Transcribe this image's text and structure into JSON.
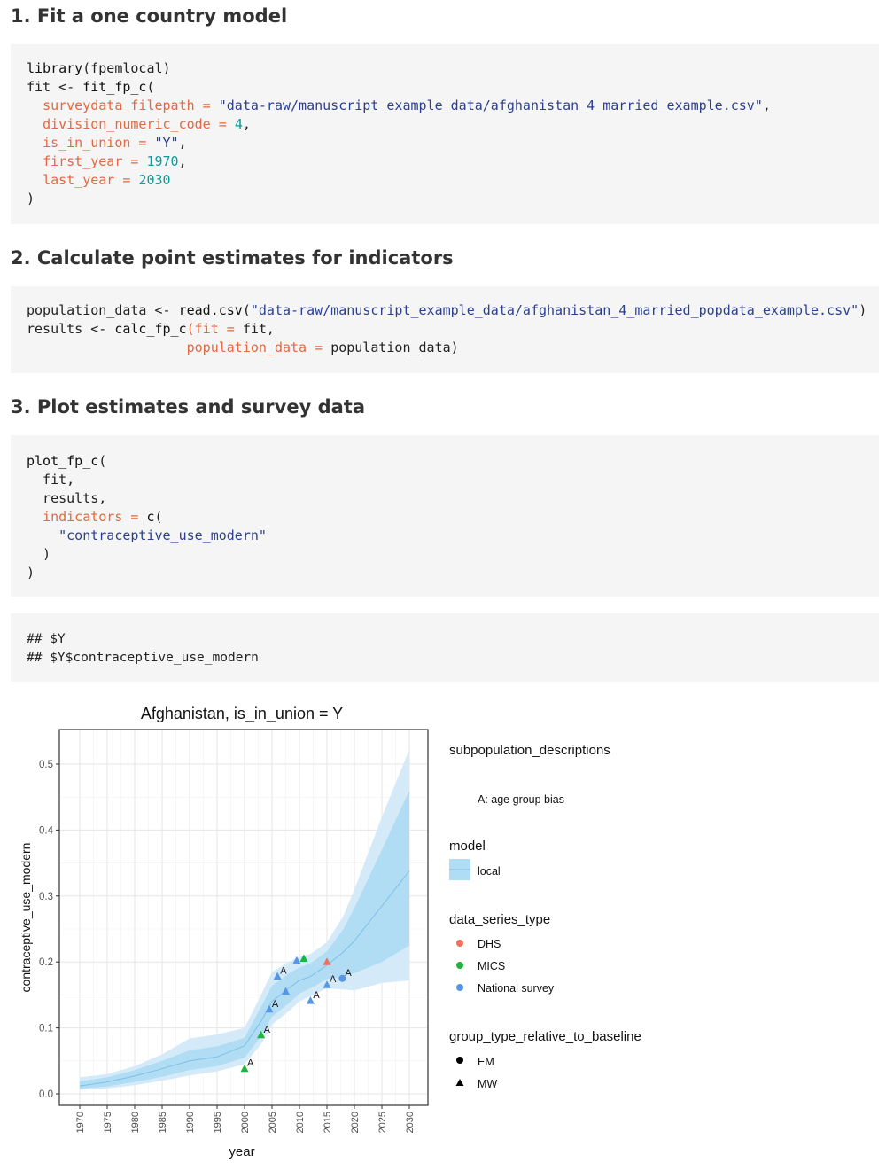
{
  "sections": [
    {
      "heading": "1. Fit a one country model"
    },
    {
      "heading": "2. Calculate point estimates for indicators"
    },
    {
      "heading": "3. Plot estimates and survey data"
    }
  ],
  "code1": {
    "l1_fn": "library",
    "l1_open": "(",
    "l1_arg": "fpemlocal",
    "l1_close": ")",
    "l2_a": "fit <- ",
    "l2_fn": "fit_fp_c",
    "l2_b": "(",
    "l3_arg": "surveydata_filepath",
    "l3_eq": " = ",
    "l3_val": "\"data-raw/manuscript_example_data/afghanistan_4_married_example.csv\"",
    "l3_end": ",",
    "l4_arg": "division_numeric_code",
    "l4_eq": " = ",
    "l4_val": "4",
    "l4_end": ",",
    "l5_arg": "is_in_union",
    "l5_eq": " = ",
    "l5_val": "\"Y\"",
    "l5_end": ",",
    "l6_arg": "first_year",
    "l6_eq": " = ",
    "l6_val": "1970",
    "l6_end": ",",
    "l7_arg": "last_year",
    "l7_eq": " = ",
    "l7_val": "2030",
    "l8": ")"
  },
  "code2": {
    "l1_a": "population_data <- ",
    "l1_fn": "read.csv",
    "l1_b": "(",
    "l1_val": "\"data-raw/manuscript_example_data/afghanistan_4_married_popdata_example.csv\"",
    "l1_c": ")",
    "l2_a": "results <- ",
    "l2_fn": "calc_fp_c",
    "l2_b": "(",
    "l2_arg": "fit",
    "l2_eq": " = ",
    "l2_val": "fit,",
    "l3_pad": "                    ",
    "l3_arg": "population_data",
    "l3_eq": " = ",
    "l3_val": "population_data)"
  },
  "code3": {
    "l1_fn": "plot_fp_c",
    "l1_b": "(",
    "l2": "  fit,",
    "l3": "  results,",
    "l4_pad": "  ",
    "l4_arg": "indicators",
    "l4_eq": " = ",
    "l4_fn": "c",
    "l4_b": "(",
    "l5_pad": "    ",
    "l5_val": "\"contraceptive_use_modern\"",
    "l6": "  )",
    "l7": ")"
  },
  "output": {
    "l1": "## $Y",
    "l2": "## $Y$contraceptive_use_modern"
  },
  "colors": {
    "band_outer": "#d4eaf9",
    "band_inner": "#b0dcf4",
    "median": "#7ec0e6",
    "DHS": "#f0705c",
    "MICS": "#1fb340",
    "National survey": "#5596e6"
  },
  "chart_data": {
    "type": "line",
    "title": "Afghanistan, is_in_union = Y",
    "xlabel": "year",
    "ylabel": "contraceptive_use_modern",
    "xlim": [
      1970,
      2030
    ],
    "ylim": [
      0,
      0.5
    ],
    "x_ticks": [
      1970,
      1975,
      1980,
      1985,
      1990,
      1995,
      2000,
      2005,
      2010,
      2015,
      2020,
      2025,
      2030
    ],
    "y_ticks": [
      0.0,
      0.1,
      0.2,
      0.3,
      0.4,
      0.5
    ],
    "y_tick_labels": [
      "0.0",
      "0.1",
      "0.2",
      "0.3",
      "0.4",
      "0.5"
    ],
    "grid": true,
    "legend_position": "right",
    "estimate": {
      "x": [
        1970,
        1975,
        1980,
        1985,
        1990,
        1995,
        2000,
        2003,
        2005,
        2008,
        2010,
        2012,
        2015,
        2018,
        2020,
        2025,
        2030
      ],
      "median": [
        0.012,
        0.018,
        0.027,
        0.038,
        0.05,
        0.056,
        0.073,
        0.11,
        0.14,
        0.16,
        0.172,
        0.178,
        0.195,
        0.215,
        0.232,
        0.285,
        0.338
      ],
      "lower95": [
        0.006,
        0.008,
        0.013,
        0.02,
        0.028,
        0.034,
        0.045,
        0.075,
        0.105,
        0.125,
        0.14,
        0.148,
        0.16,
        0.158,
        0.157,
        0.168,
        0.172
      ],
      "upper95": [
        0.025,
        0.03,
        0.042,
        0.06,
        0.084,
        0.09,
        0.1,
        0.15,
        0.185,
        0.2,
        0.208,
        0.212,
        0.23,
        0.27,
        0.31,
        0.42,
        0.522
      ],
      "lower80": [
        0.008,
        0.011,
        0.018,
        0.026,
        0.036,
        0.042,
        0.055,
        0.087,
        0.117,
        0.137,
        0.152,
        0.16,
        0.174,
        0.178,
        0.183,
        0.2,
        0.225
      ],
      "upper80": [
        0.019,
        0.025,
        0.036,
        0.05,
        0.066,
        0.072,
        0.085,
        0.132,
        0.164,
        0.182,
        0.192,
        0.198,
        0.216,
        0.25,
        0.282,
        0.37,
        0.46
      ]
    },
    "observations": [
      {
        "year": 2000,
        "value": 0.038,
        "series": "MICS",
        "shape": "MW",
        "label": "A"
      },
      {
        "year": 2003,
        "value": 0.089,
        "series": "MICS",
        "shape": "MW",
        "label": "A"
      },
      {
        "year": 2004.5,
        "value": 0.128,
        "series": "National survey",
        "shape": "MW",
        "label": "A"
      },
      {
        "year": 2006,
        "value": 0.178,
        "series": "National survey",
        "shape": "MW",
        "label": "A"
      },
      {
        "year": 2007.5,
        "value": 0.155,
        "series": "National survey",
        "shape": "MW",
        "label": ""
      },
      {
        "year": 2009.5,
        "value": 0.202,
        "series": "National survey",
        "shape": "MW",
        "label": ""
      },
      {
        "year": 2010.8,
        "value": 0.205,
        "series": "MICS",
        "shape": "MW",
        "label": ""
      },
      {
        "year": 2012,
        "value": 0.141,
        "series": "National survey",
        "shape": "MW",
        "label": "A"
      },
      {
        "year": 2015,
        "value": 0.2,
        "series": "DHS",
        "shape": "MW",
        "label": ""
      },
      {
        "year": 2015,
        "value": 0.165,
        "series": "National survey",
        "shape": "MW",
        "label": "A"
      },
      {
        "year": 2017.8,
        "value": 0.175,
        "series": "National survey",
        "shape": "EM",
        "label": "A"
      }
    ],
    "legend": {
      "subpop_title": "subpopulation_descriptions",
      "subpop_item": "A: age group bias",
      "model_title": "model",
      "model_item": "local",
      "series_title": "data_series_type",
      "series_items": [
        "DHS",
        "MICS",
        "National survey"
      ],
      "group_title": "group_type_relative_to_baseline",
      "group_items": [
        "EM",
        "MW"
      ]
    }
  }
}
